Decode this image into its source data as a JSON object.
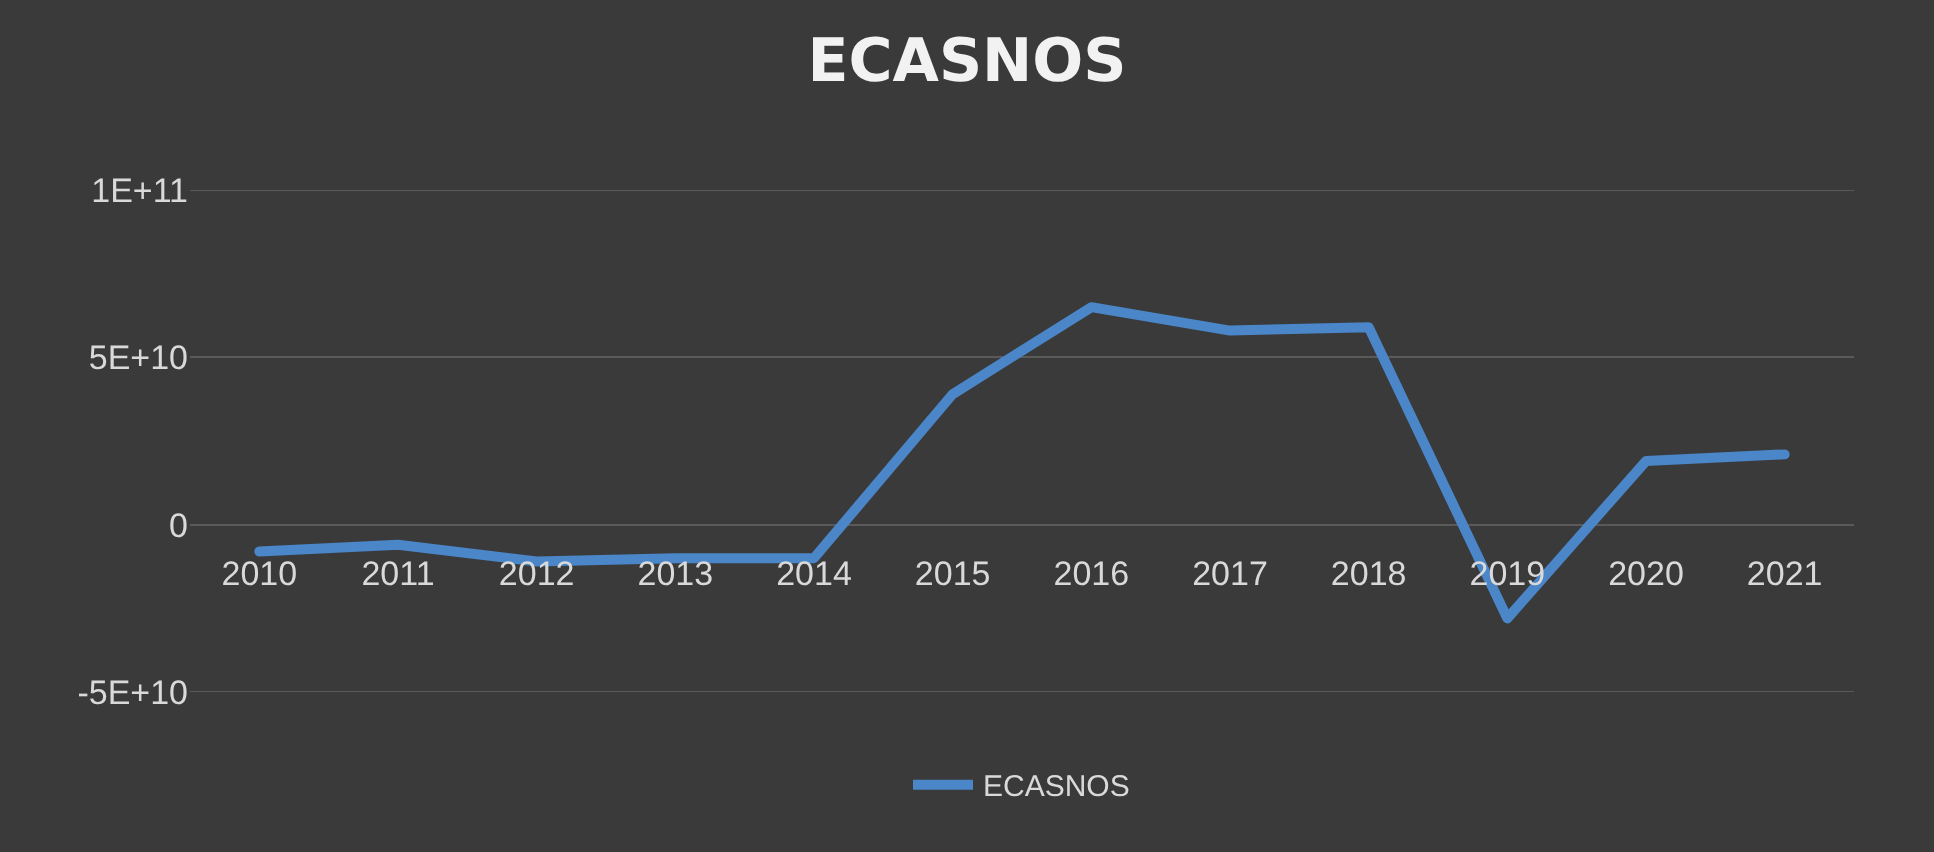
{
  "chart_data": {
    "type": "line",
    "title": "ECASNOS",
    "categories": [
      "2010",
      "2011",
      "2012",
      "2013",
      "2014",
      "2015",
      "2016",
      "2017",
      "2018",
      "2019",
      "2020",
      "2021"
    ],
    "series": [
      {
        "name": "ECASNOS",
        "color": "#4a86c8",
        "values": [
          -8000000000.0,
          -6000000000.0,
          -11000000000.0,
          -10000000000.0,
          -10000000000.0,
          39000000000.0,
          65000000000.0,
          58000000000.0,
          59000000000.0,
          -28000000000.0,
          19000000000.0,
          21000000000.0
        ]
      }
    ],
    "ylim": [
      -50000000000.0,
      100000000000.0
    ],
    "yticks": [
      {
        "value": -50000000000.0,
        "label": "-5E+10"
      },
      0,
      {
        "value": 50000000000.0,
        "label": "5E+10"
      },
      {
        "value": 100000000000.0,
        "label": "1E+11"
      }
    ],
    "grid": "y",
    "legend": "bottom",
    "marker": "none",
    "line_style": "solid"
  }
}
